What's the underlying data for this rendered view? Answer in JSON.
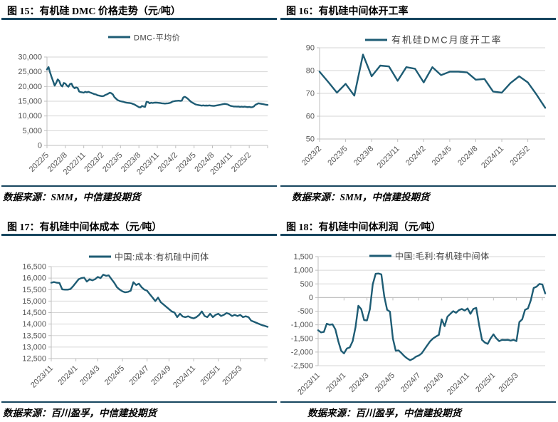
{
  "page": {
    "rule_color": "#17465F",
    "axis_color": "#BFBFBF",
    "grid_color": "#D6D6D6",
    "tick_text_color": "#555555"
  },
  "chart_data": [
    {
      "id": "figure-15",
      "type": "line",
      "title": "图 15：有机硅 DMC 价格走势（元/吨）",
      "source": "数据来源：SMM，中信建投期货",
      "legend": "DMC-平均价",
      "line_color": "#1E5C74",
      "ylim": [
        0,
        30000
      ],
      "ystep": 5000,
      "gridlines": true,
      "x_tick_labels": [
        "2022/5",
        "2022/8",
        "2022/11",
        "2023/2",
        "2023/5",
        "2023/8",
        "2023/11",
        "2024/2",
        "2024/5",
        "2024/8",
        "2024/11",
        "2025/2",
        ""
      ],
      "x_tick_indices": [
        0,
        12,
        24,
        36,
        48,
        60,
        72,
        84,
        96,
        108,
        120,
        132,
        144
      ],
      "values": [
        25800,
        26600,
        24800,
        23200,
        21800,
        20300,
        21200,
        22400,
        21900,
        20500,
        20000,
        21200,
        21000,
        20300,
        19900,
        20800,
        21000,
        19900,
        19400,
        19700,
        19500,
        18300,
        18100,
        18000,
        17900,
        18200,
        18000,
        18200,
        18000,
        17800,
        17600,
        17400,
        17300,
        17000,
        16900,
        16800,
        16700,
        16800,
        17100,
        17300,
        17600,
        17900,
        17700,
        17300,
        16400,
        15900,
        15400,
        15200,
        15000,
        14900,
        14800,
        14600,
        14500,
        14450,
        14400,
        14300,
        14100,
        13900,
        13600,
        13300,
        13000,
        12900,
        13400,
        13200,
        13100,
        14800,
        14700,
        14300,
        14500,
        14400,
        14500,
        14550,
        14500,
        14450,
        14400,
        14300,
        14250,
        14200,
        14250,
        14300,
        14400,
        14600,
        14900,
        15000,
        15100,
        15150,
        15200,
        15100,
        15200,
        16300,
        16500,
        16200,
        15800,
        15300,
        14800,
        14500,
        14200,
        13900,
        13800,
        13700,
        13600,
        13500,
        13600,
        13500,
        13550,
        13500,
        13600,
        13500,
        13450,
        13400,
        13500,
        13600,
        13700,
        13800,
        13900,
        14000,
        14100,
        14000,
        13900,
        13600,
        13400,
        13300,
        13200,
        13200,
        13150,
        13200,
        13100,
        13150,
        13100,
        13150,
        13100,
        13000,
        13100,
        12950,
        13000,
        13200,
        13800,
        14000,
        14300,
        14200,
        14100,
        14000,
        13900,
        13800,
        13750
      ]
    },
    {
      "id": "figure-16",
      "type": "line",
      "title": "图 16：有机硅中间体开工率",
      "source": "数据来源：SMM，中信建投期货",
      "legend": "有机硅DMC月度开工率",
      "line_color": "#1E5C74",
      "ylim": [
        50,
        90
      ],
      "ystep": 10,
      "gridlines": true,
      "x_tick_labels": [
        "2023/2",
        "2023/5",
        "2023/8",
        "2023/11",
        "2024/2",
        "2024/5",
        "2024/8",
        "2024/11",
        "2025/2"
      ],
      "x_tick_indices": [
        0,
        3,
        6,
        9,
        12,
        15,
        18,
        21,
        24
      ],
      "values": [
        79.5,
        75,
        70.3,
        74.2,
        69,
        87,
        77.5,
        82.2,
        81.8,
        75.5,
        81.5,
        80.8,
        74.8,
        81.5,
        78,
        79.5,
        79.5,
        79.2,
        76,
        76.3,
        70.8,
        70.3,
        74.5,
        77.5,
        74.8,
        69.5,
        63.7
      ]
    },
    {
      "id": "figure-17",
      "type": "line",
      "title": "图 17：有机硅中间体成本（元/吨）",
      "source": "数据来源：百川盈孚，中信建投期货",
      "legend": "中国:成本:有机硅中间体",
      "line_color": "#1E5C74",
      "ylim": [
        12500,
        16500
      ],
      "ystep": 500,
      "gridlines": true,
      "x_tick_labels": [
        "2023/11",
        "2024/1",
        "2024/3",
        "2024/5",
        "2024/7",
        "2024/9",
        "2024/11",
        "2025/1",
        "2025/3",
        ""
      ],
      "x_tick_indices": [
        0,
        9,
        17,
        26,
        35,
        43,
        52,
        61,
        69,
        78
      ],
      "values": [
        15800,
        15830,
        15800,
        15790,
        15510,
        15500,
        15500,
        15520,
        15650,
        15800,
        15950,
        16000,
        16020,
        15850,
        15950,
        15900,
        15950,
        16050,
        16000,
        16150,
        16100,
        16120,
        15950,
        15800,
        15600,
        15500,
        15420,
        15380,
        15400,
        15450,
        15820,
        15700,
        15760,
        15600,
        15500,
        15450,
        15300,
        15150,
        15000,
        15150,
        14950,
        14850,
        14750,
        14650,
        14550,
        14500,
        14300,
        14450,
        14330,
        14300,
        14340,
        14280,
        14250,
        14300,
        14400,
        14550,
        14350,
        14300,
        14450,
        14300,
        14400,
        14450,
        14350,
        14400,
        14480,
        14440,
        14350,
        14400,
        14350,
        14400,
        14300,
        14340,
        14300,
        14150,
        14100,
        14050,
        14000,
        13950,
        13920,
        13880
      ]
    },
    {
      "id": "figure-18",
      "type": "line",
      "title": "图 18：有机硅中间体利润（元/吨）",
      "source": "数据来源：百川盈孚，中信建投期货",
      "legend": "中国:毛利:有机硅中间体",
      "line_color": "#1E5C74",
      "ylim": [
        -2500,
        1500
      ],
      "ystep": 500,
      "gridlines": true,
      "axis_at_zero": true,
      "x_tick_labels": [
        "2023/11",
        "2024/1",
        "2024/3",
        "2024/5",
        "2024/7",
        "2024/9",
        "2024/11",
        "2025/1",
        "2025/3",
        ""
      ],
      "x_tick_indices": [
        0,
        9,
        17,
        26,
        35,
        43,
        52,
        61,
        69,
        78
      ],
      "values": [
        -1200,
        -1280,
        -1260,
        -960,
        -1000,
        -980,
        -1170,
        -1600,
        -1950,
        -2050,
        -1870,
        -1830,
        -1600,
        -1090,
        -300,
        -430,
        -830,
        -840,
        -430,
        480,
        870,
        880,
        850,
        40,
        -450,
        -520,
        -1500,
        -1950,
        -1940,
        -2040,
        -2150,
        -2235,
        -2300,
        -2250,
        -2170,
        -2130,
        -2050,
        -1900,
        -1750,
        -1600,
        -1500,
        -1430,
        -1370,
        -800,
        -1050,
        -700,
        -600,
        -500,
        -560,
        -460,
        -420,
        -480,
        -400,
        -600,
        -420,
        -380,
        -1000,
        -1550,
        -1650,
        -1700,
        -1500,
        -1350,
        -1500,
        -1600,
        -1550,
        -1560,
        -1550,
        -1580,
        -1550,
        -1600,
        -900,
        -800,
        -450,
        -400,
        -100,
        350,
        400,
        500,
        480,
        150
      ]
    }
  ]
}
